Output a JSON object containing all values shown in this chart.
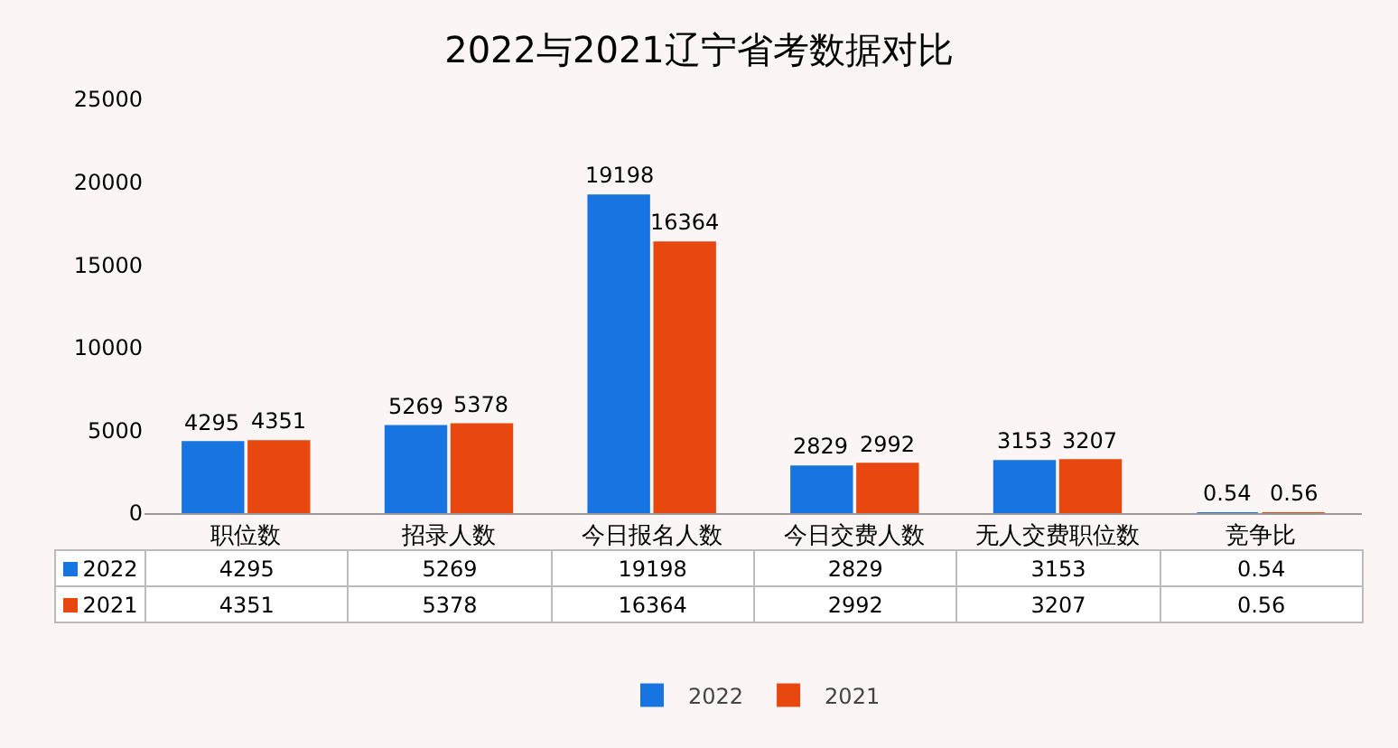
{
  "chart_data": {
    "type": "bar",
    "title": "2022与2021辽宁省考数据对比",
    "categories": [
      "职位数",
      "招录人数",
      "今日报名人数",
      "今日交费人数",
      "无人交费职位数",
      "竞争比"
    ],
    "series": [
      {
        "name": "2022",
        "color": "#1874e0",
        "values": [
          4295,
          5269,
          19198,
          2829,
          3153,
          0.54
        ]
      },
      {
        "name": "2021",
        "color": "#e8480f",
        "values": [
          4351,
          5378,
          16364,
          2992,
          3207,
          0.56
        ]
      }
    ],
    "annotations": [
      {
        "text": "4295",
        "x": "职位数",
        "y": 4295
      },
      {
        "text": "5269",
        "x": "招录人数",
        "y": 5269
      },
      {
        "text": "19198",
        "x": "今日报名人数",
        "y": 19198
      },
      {
        "text": "2829",
        "x": "今日交费人数",
        "y": 2829
      },
      {
        "text": "3153",
        "x": "无人交费职位数",
        "y": 3153
      },
      {
        "text": "0.54",
        "x": "竞争比",
        "y": 0.54
      },
      {
        "text": "4351",
        "x": "职位数",
        "y": 4351
      },
      {
        "text": "5378",
        "x": "招录人数",
        "y": 5378
      },
      {
        "text": "16364",
        "x": "今日报名人数",
        "y": 16364
      },
      {
        "text": "2992",
        "x": "今日交费人数",
        "y": 2992
      },
      {
        "text": "3207",
        "x": "无人交费职位数",
        "y": 3207
      },
      {
        "text": "0.56",
        "x": "竞争比",
        "y": 0.56
      }
    ],
    "ylim": [
      0,
      25000
    ],
    "yticks": [
      0,
      5000,
      10000,
      15000,
      20000,
      25000
    ],
    "grid": false,
    "legend": "bottom",
    "data_labels": true
  }
}
